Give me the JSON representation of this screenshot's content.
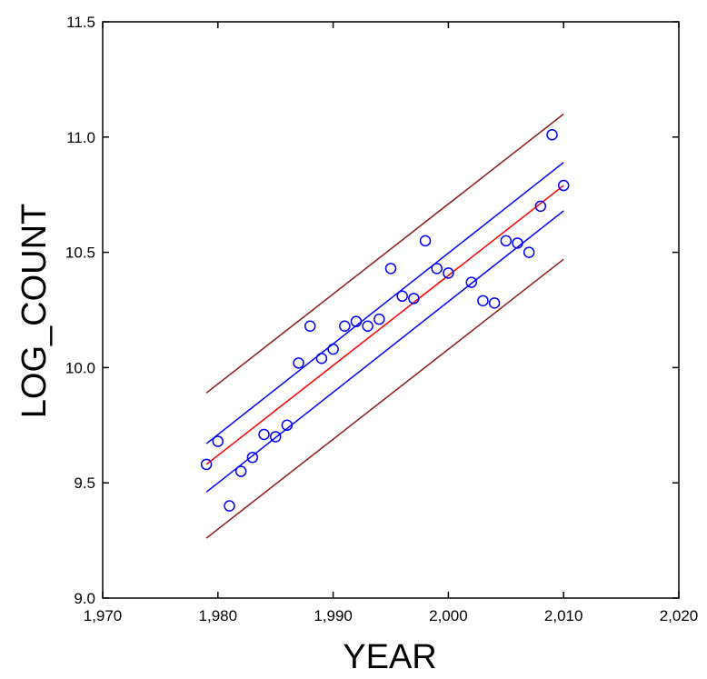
{
  "chart_data": {
    "type": "scatter",
    "title": "",
    "xlabel": "YEAR",
    "ylabel": "LOG_COUNT",
    "xlim": [
      1970,
      2020
    ],
    "ylim": [
      9.0,
      11.5
    ],
    "x_ticks": [
      1970,
      1980,
      1990,
      2000,
      2010,
      2020
    ],
    "x_tick_labels": [
      "1,970",
      "1,980",
      "1,990",
      "2,000",
      "2,010",
      "2,020"
    ],
    "y_ticks": [
      9.0,
      9.5,
      10.0,
      10.5,
      11.0,
      11.5
    ],
    "y_tick_labels": [
      "9.0",
      "9.5",
      "10.0",
      "10.5",
      "11.0",
      "11.5"
    ],
    "grid": false,
    "legend": "none",
    "colors": {
      "points": "#0000ff",
      "fit": "#ff0000",
      "confidence_band": "#0000ff",
      "prediction_band": "#8b1a1a",
      "axes": "#000000"
    },
    "points": [
      {
        "x": 1979,
        "y": 9.58
      },
      {
        "x": 1980,
        "y": 9.68
      },
      {
        "x": 1981,
        "y": 9.4
      },
      {
        "x": 1982,
        "y": 9.55
      },
      {
        "x": 1983,
        "y": 9.61
      },
      {
        "x": 1984,
        "y": 9.71
      },
      {
        "x": 1985,
        "y": 9.7
      },
      {
        "x": 1986,
        "y": 9.75
      },
      {
        "x": 1987,
        "y": 10.02
      },
      {
        "x": 1988,
        "y": 10.18
      },
      {
        "x": 1989,
        "y": 10.04
      },
      {
        "x": 1990,
        "y": 10.08
      },
      {
        "x": 1991,
        "y": 10.18
      },
      {
        "x": 1992,
        "y": 10.2
      },
      {
        "x": 1993,
        "y": 10.18
      },
      {
        "x": 1994,
        "y": 10.21
      },
      {
        "x": 1995,
        "y": 10.43
      },
      {
        "x": 1996,
        "y": 10.31
      },
      {
        "x": 1997,
        "y": 10.3
      },
      {
        "x": 1998,
        "y": 10.55
      },
      {
        "x": 1999,
        "y": 10.43
      },
      {
        "x": 2000,
        "y": 10.41
      },
      {
        "x": 2002,
        "y": 10.37
      },
      {
        "x": 2003,
        "y": 10.29
      },
      {
        "x": 2004,
        "y": 10.28
      },
      {
        "x": 2005,
        "y": 10.55
      },
      {
        "x": 2006,
        "y": 10.54
      },
      {
        "x": 2007,
        "y": 10.5
      },
      {
        "x": 2008,
        "y": 10.7
      },
      {
        "x": 2009,
        "y": 11.01
      },
      {
        "x": 2010,
        "y": 10.79
      }
    ],
    "lines": [
      {
        "role": "fit",
        "x": [
          1979,
          2010
        ],
        "y": [
          9.58,
          10.79
        ]
      },
      {
        "role": "confidence-upper",
        "x": [
          1979,
          2010
        ],
        "y": [
          9.67,
          10.89
        ]
      },
      {
        "role": "confidence-lower",
        "x": [
          1979,
          2010
        ],
        "y": [
          9.46,
          10.68
        ]
      },
      {
        "role": "prediction-upper",
        "x": [
          1979,
          2010
        ],
        "y": [
          9.89,
          11.1
        ]
      },
      {
        "role": "prediction-lower",
        "x": [
          1979,
          2010
        ],
        "y": [
          9.26,
          10.47
        ]
      }
    ]
  }
}
